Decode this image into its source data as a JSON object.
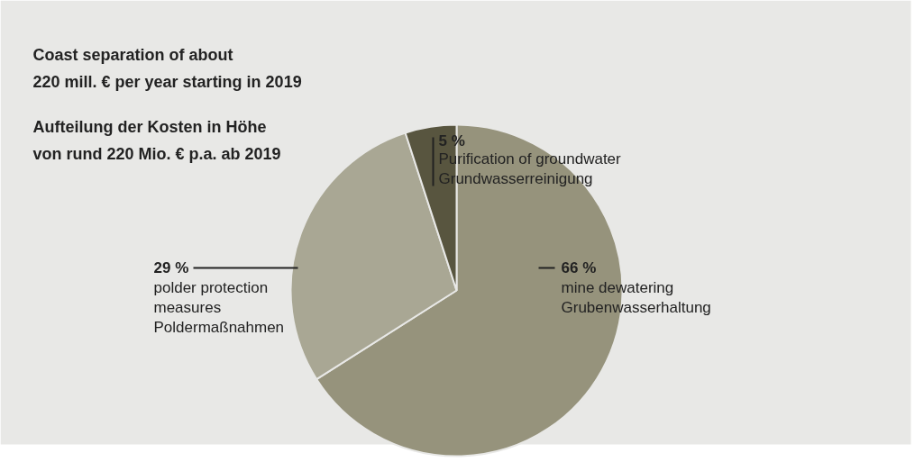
{
  "chart_data": {
    "type": "pie",
    "title": "Coast separation of about\n220 mill. € per year starting in 2019",
    "subtitle": "Aufteilung der Kosten in Höhe\nvon rund 220 Mio. € p.a. ab 2019",
    "categories": [
      "mine dewatering\nGrubenwasserhaltung",
      "polder protection\nmeasures\nPoldermaßnahmen",
      "Purification of groundwater\nGrundwasserreinigung"
    ],
    "values": [
      66,
      29,
      5
    ],
    "colors": [
      "#96937c",
      "#a9a794",
      "#58553f"
    ],
    "value_labels": [
      "66 %",
      "29 %",
      "5 %"
    ]
  }
}
